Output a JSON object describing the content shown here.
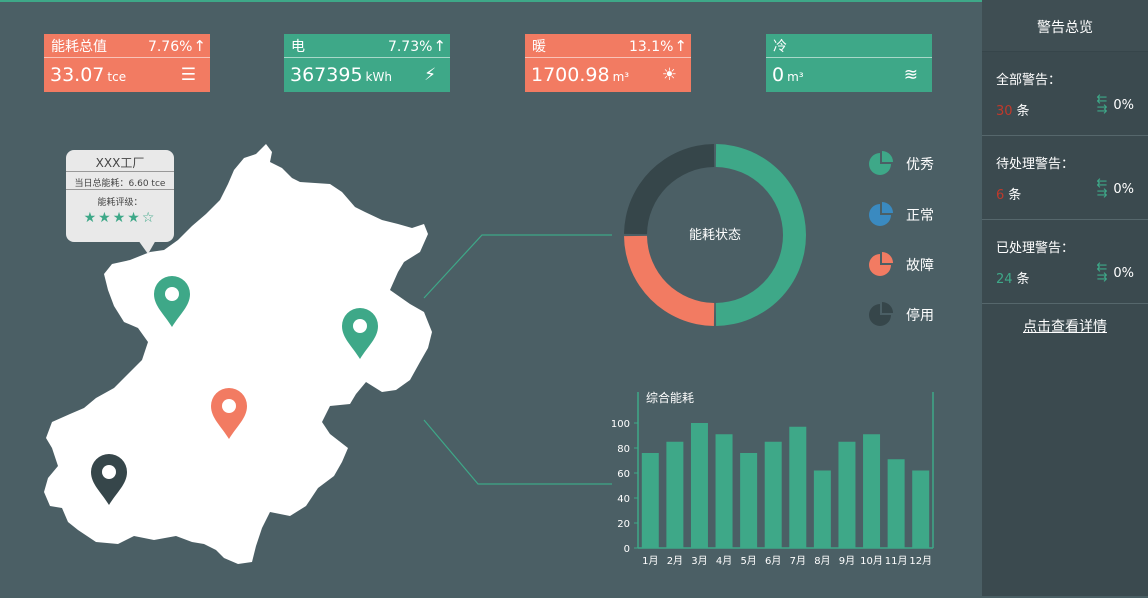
{
  "stats": [
    {
      "label": "能耗总值",
      "change": "7.76%",
      "value": "33.07",
      "unit": "tce",
      "icon": "list-return-icon",
      "color": "#f27b62"
    },
    {
      "label": "电",
      "change": "7.73%",
      "value": "367395",
      "unit": "kWh",
      "icon": "lightning-icon",
      "color": "#3ea888"
    },
    {
      "label": "暖",
      "change": "13.1%",
      "value": "1700.98",
      "unit": "m³",
      "icon": "sun-icon",
      "color": "#f27b62"
    },
    {
      "label": "冷",
      "change": "",
      "value": "0",
      "unit": "m³",
      "icon": "wind-icon",
      "color": "#3ea888"
    }
  ],
  "tooltip": {
    "title": "XXX工厂",
    "daily_total": "当日总能耗：6.60 tce",
    "rating_label": "能耗评级：",
    "stars": "★★★★☆"
  },
  "donut": {
    "label": "能耗状态",
    "segments": [
      {
        "name": "优秀",
        "value": 50,
        "color": "#3ea888"
      },
      {
        "name": "故障",
        "value": 25,
        "color": "#f27b62"
      },
      {
        "name": "停用",
        "value": 25,
        "color": "#36464a"
      }
    ]
  },
  "legend": [
    {
      "label": "优秀",
      "color": "#3ea888"
    },
    {
      "label": "正常",
      "color": "#3a8ac0"
    },
    {
      "label": "故障",
      "color": "#f27b62"
    },
    {
      "label": "停用",
      "color": "#36464a"
    }
  ],
  "map_pins": [
    {
      "name": "map-pin-green-north",
      "color": "#3ea888"
    },
    {
      "name": "map-pin-green-east",
      "color": "#3ea888"
    },
    {
      "name": "map-pin-orange-center",
      "color": "#f27b62"
    },
    {
      "name": "map-pin-dark-southwest",
      "color": "#36464a"
    }
  ],
  "chart_data": {
    "type": "bar",
    "title": "综合能耗",
    "categories": [
      "1月",
      "2月",
      "3月",
      "4月",
      "5月",
      "6月",
      "7月",
      "8月",
      "9月",
      "10月",
      "11月",
      "12月"
    ],
    "values": [
      76,
      85,
      100,
      91,
      76,
      85,
      97,
      62,
      85,
      91,
      71,
      62
    ],
    "ylim": [
      0,
      100
    ],
    "yticks": [
      0,
      20,
      40,
      60,
      80,
      100
    ],
    "color": "#3ea888",
    "grid": false
  },
  "sidebar": {
    "title": "警告总览",
    "blocks": [
      {
        "label": "全部警告：",
        "count": "30",
        "count_color": "#c0392b",
        "unit": "条",
        "percent": "0%"
      },
      {
        "label": "待处理警告：",
        "count": "6",
        "count_color": "#c0392b",
        "unit": "条",
        "percent": "0%"
      },
      {
        "label": "已处理警告：",
        "count": "24",
        "count_color": "#3ea888",
        "unit": "条",
        "percent": "0%"
      }
    ],
    "detail_link": "点击查看详情"
  }
}
